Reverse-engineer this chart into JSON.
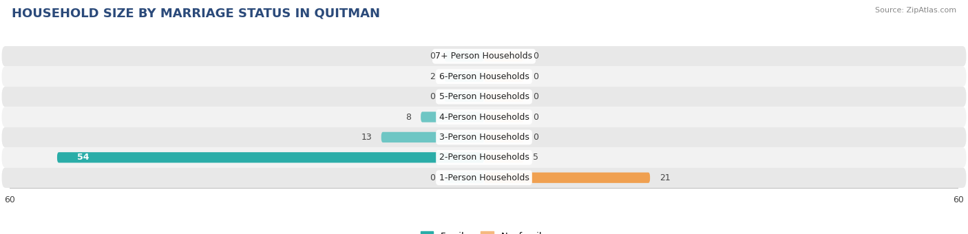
{
  "title": "HOUSEHOLD SIZE BY MARRIAGE STATUS IN QUITMAN",
  "source": "Source: ZipAtlas.com",
  "categories": [
    "7+ Person Households",
    "6-Person Households",
    "5-Person Households",
    "4-Person Households",
    "3-Person Households",
    "2-Person Households",
    "1-Person Households"
  ],
  "family_values": [
    0,
    2,
    0,
    8,
    13,
    54,
    0
  ],
  "nonfamily_values": [
    0,
    0,
    0,
    0,
    0,
    5,
    21
  ],
  "family_color_light": "#6EC6C4",
  "family_color_dark": "#2AADA8",
  "nonfamily_color": "#F5B97F",
  "nonfamily_color_dark": "#F0A050",
  "xlim": 60,
  "min_stub": 5,
  "bar_height": 0.52,
  "row_colors": [
    "#e8e8e8",
    "#f2f2f2"
  ],
  "title_color": "#2B4A7A",
  "source_color": "#888888",
  "label_fontsize": 9,
  "value_fontsize": 9,
  "title_fontsize": 13
}
